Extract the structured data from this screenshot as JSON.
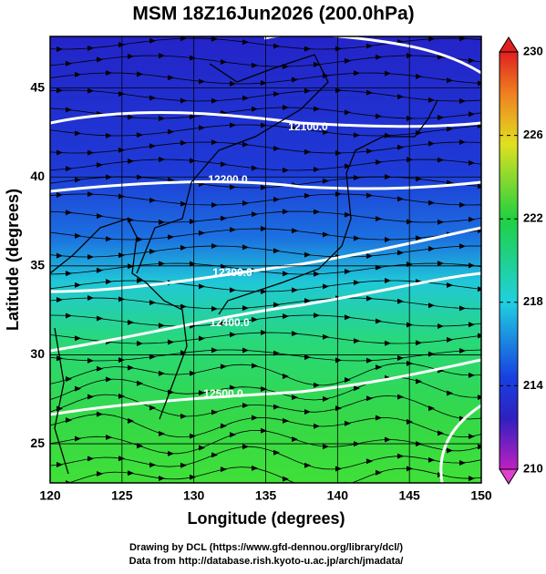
{
  "title": "MSM 18Z16Jun2026 (200.0hPa)",
  "map": {
    "xlabel": "Longitude (degrees)",
    "ylabel": "Latitude  (degrees)",
    "xlim": [
      120,
      150
    ],
    "ylim": [
      22.8,
      47.9
    ],
    "xticks": [
      120,
      125,
      130,
      135,
      140,
      145,
      150
    ],
    "yticks": [
      25,
      30,
      35,
      40,
      45
    ],
    "contour_labels": [
      "12100.0",
      "12200.0",
      "12300.0",
      "12400.0",
      "12500.0"
    ]
  },
  "colorbar": {
    "lim": [
      210,
      230
    ],
    "ticks": [
      210,
      214,
      218,
      222,
      226,
      230
    ]
  },
  "footer": [
    "Drawing by DCL (https://www.gfd-dennou.org/library/dcl/)",
    "Data from http://database.rish.kyoto-u.ac.jp/arch/jmadata/"
  ]
}
